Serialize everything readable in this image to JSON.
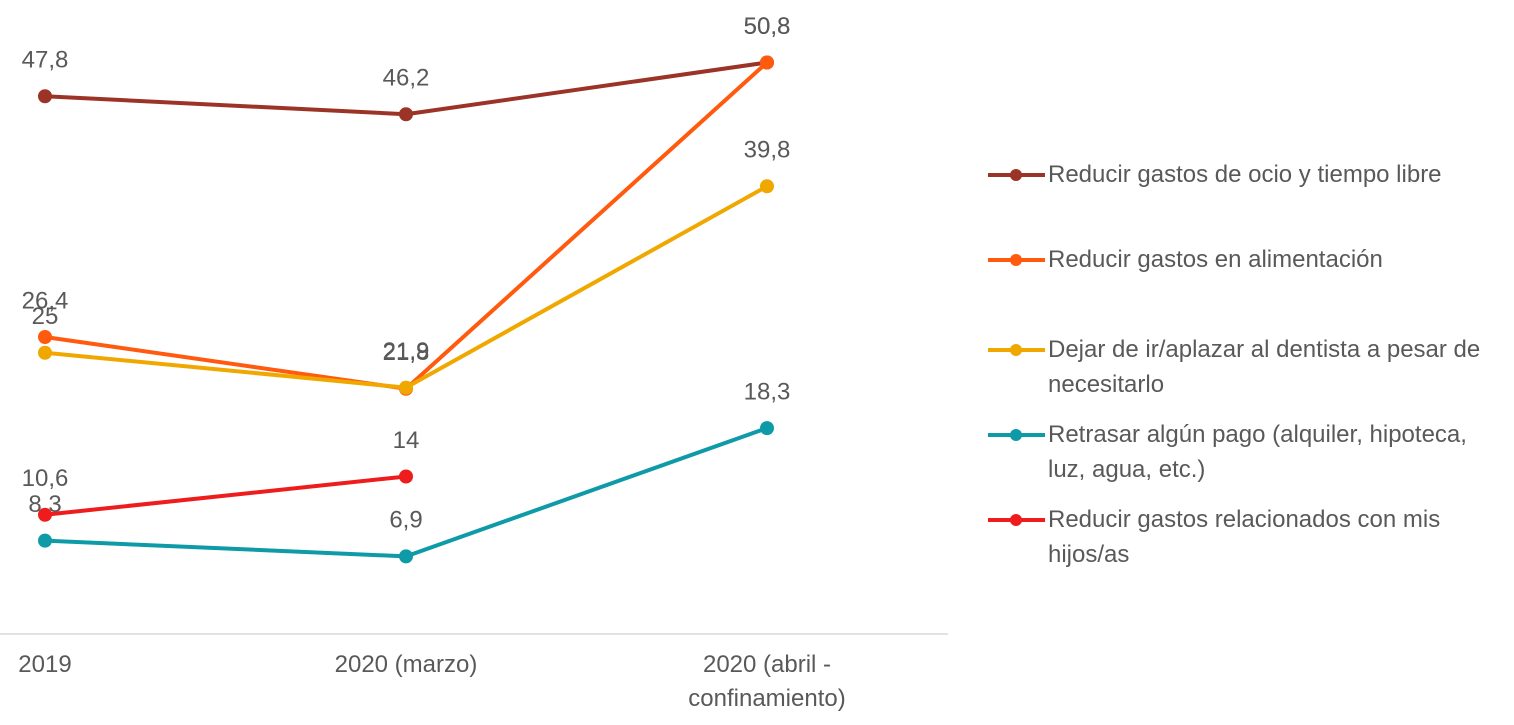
{
  "chart_data": {
    "type": "line",
    "categories": [
      "2019",
      "2020 (marzo)",
      "2020 (abril - confinamiento)"
    ],
    "ylim": [
      0,
      56
    ],
    "series": [
      {
        "name": "Reducir gastos de ocio y tiempo libre",
        "color": "#9b3426",
        "values": [
          47.8,
          46.2,
          50.8
        ],
        "value_labels": [
          "47,8",
          "46,2",
          "50,8"
        ]
      },
      {
        "name": "Reducir gastos en alimentación",
        "color": "#ff5a0e",
        "values": [
          26.4,
          21.8,
          50.8
        ],
        "value_labels": [
          "26,4",
          "21,8",
          "50,8"
        ]
      },
      {
        "name": "Dejar de ir/aplazar al dentista a pesar de necesitarlo",
        "color": "#f0a800",
        "values": [
          25,
          21.9,
          39.8
        ],
        "value_labels": [
          "25",
          "21,9",
          "39,8"
        ]
      },
      {
        "name": "Retrasar algún pago (alquiler, hipoteca, luz, agua, etc.)",
        "color": "#0e9aa7",
        "values": [
          8.3,
          6.9,
          18.3
        ],
        "value_labels": [
          "8,3",
          "6,9",
          "18,3"
        ]
      },
      {
        "name": "Reducir gastos relacionados con mis hijos/as",
        "color": "#ee1c1c",
        "values": [
          10.6,
          14,
          null
        ],
        "value_labels": [
          "10,6",
          "14",
          null
        ]
      }
    ]
  }
}
